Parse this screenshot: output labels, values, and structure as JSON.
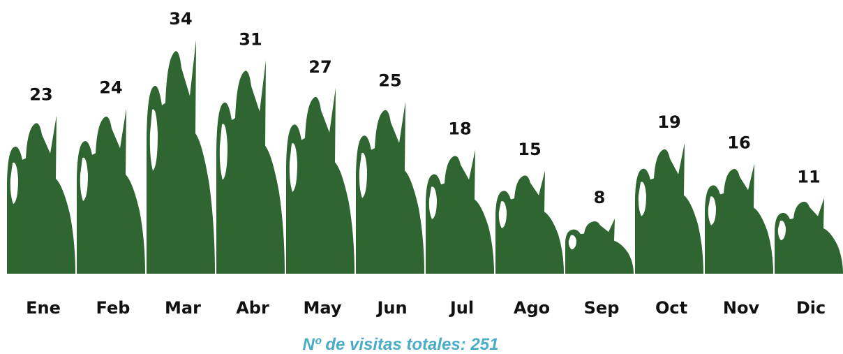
{
  "chart_data": {
    "type": "bar",
    "title": "Nº de visitas totales: 251",
    "categories": [
      "Ene",
      "Feb",
      "Mar",
      "Abr",
      "May",
      "Jun",
      "Jul",
      "Ago",
      "Sep",
      "Oct",
      "Nov",
      "Dic"
    ],
    "values": [
      23,
      24,
      34,
      31,
      27,
      25,
      18,
      15,
      8,
      19,
      16,
      11
    ],
    "color": "#2e6530"
  }
}
